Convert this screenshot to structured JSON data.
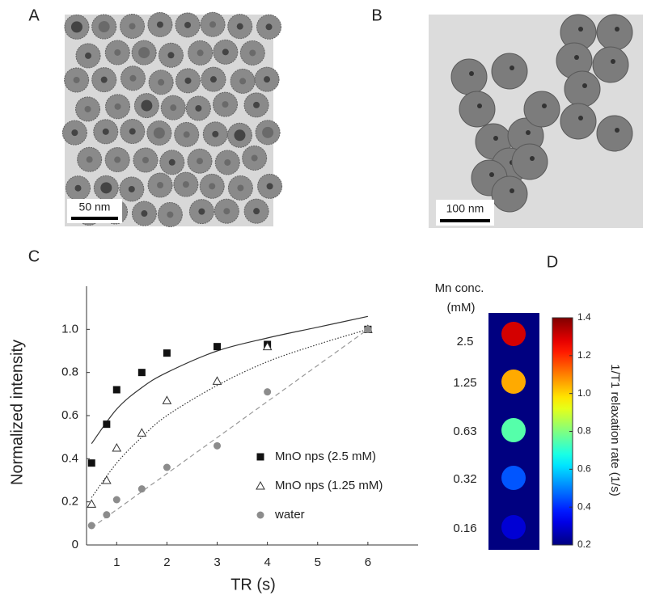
{
  "panels": {
    "a": {
      "label": "A",
      "scale_bar": "50 nm"
    },
    "b": {
      "label": "B",
      "scale_bar": "100 nm"
    }
  },
  "chart_data": [
    {
      "type": "scatter",
      "label": "C",
      "x_label": "TR (s)",
      "y_label": "Normalized intensity",
      "xlim": [
        0.4,
        7.0
      ],
      "xticks": [
        1,
        2,
        3,
        4,
        5,
        6
      ],
      "ylim": [
        0,
        1.2
      ],
      "yticks": [
        0,
        {
          "value": 0.2,
          "label": "0.2"
        },
        {
          "value": 0.4,
          "label": "0.4"
        },
        {
          "value": 0.6,
          "label": "0.6"
        },
        {
          "value": 0.8,
          "label": "0.8"
        },
        {
          "value": 1.0,
          "label": "1.0"
        }
      ],
      "grid": false,
      "legend": "lower right",
      "series": [
        {
          "name": "MnO nps (2.5 mM)",
          "color": "#111111",
          "marker": "square",
          "x": [
            0.5,
            0.8,
            1,
            1.5,
            2,
            3,
            4,
            6
          ],
          "values": [
            0.38,
            0.56,
            0.72,
            0.8,
            0.89,
            0.92,
            0.93,
            1.0
          ],
          "fit": {
            "dash": "solid",
            "x": [
              0.5,
              1,
              1.5,
              2,
              3,
              4,
              5,
              6
            ],
            "values": [
              0.47,
              0.63,
              0.73,
              0.8,
              0.9,
              0.96,
              1.01,
              1.06
            ]
          }
        },
        {
          "name": "MnO nps (1.25 mM)",
          "color": "#333333",
          "marker": "triangle",
          "x": [
            0.5,
            0.8,
            1,
            1.5,
            2,
            3,
            4,
            6
          ],
          "values": [
            0.19,
            0.3,
            0.45,
            0.52,
            0.67,
            0.76,
            0.92,
            1.0
          ],
          "fit": {
            "dash": "dotted",
            "x": [
              0.5,
              1,
              1.5,
              2,
              3,
              4,
              5,
              6
            ],
            "values": [
              0.22,
              0.38,
              0.5,
              0.6,
              0.74,
              0.85,
              0.93,
              1.0
            ]
          }
        },
        {
          "name": "water",
          "color": "#8c8c8c",
          "marker": "circle",
          "x": [
            0.5,
            0.8,
            1,
            1.5,
            2,
            3,
            4,
            6
          ],
          "values": [
            0.09,
            0.14,
            0.21,
            0.26,
            0.36,
            0.46,
            0.71,
            1.0
          ],
          "fit": {
            "dash": "dashed",
            "x": [
              0.5,
              6
            ],
            "values": [
              0.08,
              1.0
            ]
          }
        }
      ]
    },
    {
      "type": "heatmap",
      "label": "D",
      "row_title": [
        "Mn conc.",
        "(mM)"
      ],
      "categories": [
        "2.5",
        "1.25",
        "0.63",
        "0.32",
        "0.16"
      ],
      "values": [
        1.3,
        1.05,
        0.75,
        0.45,
        0.3
      ],
      "colorbar_label": "1/T1 relaxation rate (1/s)",
      "colormap": "jet",
      "clim": [
        0.2,
        1.4
      ],
      "cticks": [
        0.2,
        0.4,
        0.6,
        0.8,
        {
          "value": 1.0,
          "label": "1.0"
        },
        1.2,
        1.4
      ]
    }
  ]
}
